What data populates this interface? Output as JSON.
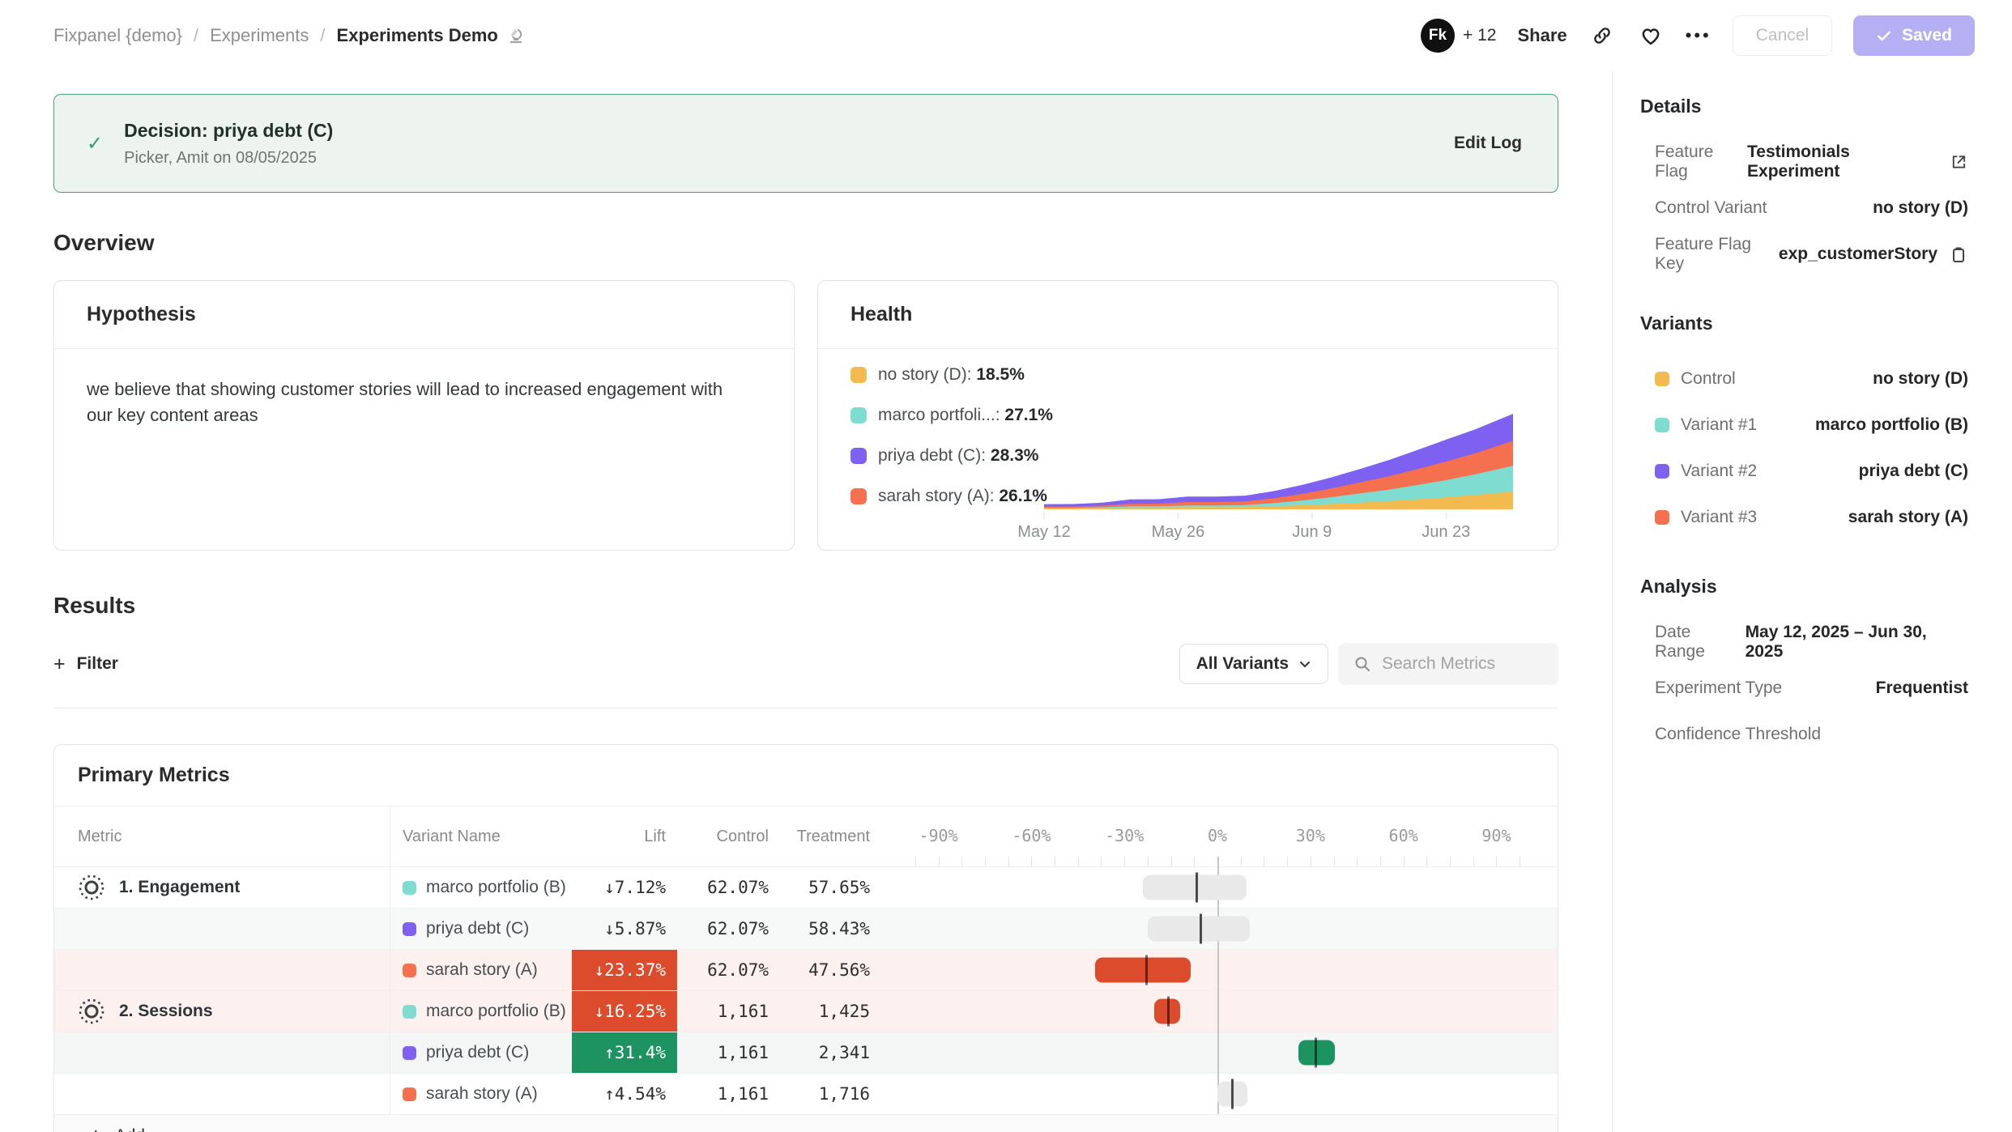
{
  "breadcrumb": {
    "items": [
      "Fixpanel {demo}",
      "Experiments"
    ],
    "current": "Experiments Demo"
  },
  "header": {
    "avatar_label": "Fk",
    "collaborators": "+ 12",
    "share_label": "Share",
    "cancel_label": "Cancel",
    "saved_label": "Saved"
  },
  "decision_banner": {
    "title": "Decision: priya debt (C)",
    "subtitle": "Picker, Amit on 08/05/2025",
    "action": "Edit Log"
  },
  "overview": {
    "title": "Overview",
    "hypothesis": {
      "title": "Hypothesis",
      "body": "we believe that showing customer stories will lead to increased engagement with our key content areas"
    },
    "health": {
      "title": "Health",
      "legend": [
        {
          "name": "no story (D): ",
          "pct": "18.5%",
          "color": "#F3BB4F"
        },
        {
          "name": "marco portfoli...: ",
          "pct": "27.1%",
          "color": "#7FDCD1"
        },
        {
          "name": "priya debt (C): ",
          "pct": "28.3%",
          "color": "#7E61F0"
        },
        {
          "name": "sarah story (A): ",
          "pct": "26.1%",
          "color": "#F4704F"
        }
      ]
    }
  },
  "chart_data": {
    "type": "area",
    "stacked": true,
    "title": "Health",
    "ylim": [
      0,
      100
    ],
    "grid": false,
    "x_days": [
      0,
      3,
      6,
      9,
      12,
      15,
      18,
      21,
      24,
      27,
      30,
      33,
      36,
      39,
      42,
      45,
      49
    ],
    "x_ticks": [
      {
        "label": "May 12",
        "day": 0
      },
      {
        "label": "May 26",
        "day": 14
      },
      {
        "label": "Jun 9",
        "day": 28
      },
      {
        "label": "Jun 23",
        "day": 42
      }
    ],
    "series": [
      {
        "name": "no story (D)",
        "color": "#F3BB4F",
        "values": [
          1.0,
          1.0,
          1.2,
          1.8,
          1.8,
          2.2,
          2.2,
          2.4,
          3.2,
          4.2,
          5.5,
          7.0,
          8.5,
          10.5,
          12.5,
          15.0,
          18.5
        ]
      },
      {
        "name": "marco portfolio (B)",
        "color": "#7FDCD1",
        "values": [
          0.6,
          0.6,
          0.9,
          1.4,
          1.4,
          1.9,
          1.9,
          2.1,
          3.4,
          5.0,
          7.2,
          9.6,
          12.0,
          15.0,
          18.0,
          21.5,
          27.1
        ]
      },
      {
        "name": "sarah story (A)",
        "color": "#F4704F",
        "values": [
          1.2,
          1.3,
          1.7,
          2.6,
          2.7,
          3.6,
          3.6,
          3.8,
          5.0,
          7.0,
          9.2,
          11.5,
          14.0,
          16.5,
          19.5,
          22.0,
          26.1
        ]
      },
      {
        "name": "priya debt (C)",
        "color": "#7E61F0",
        "values": [
          2.6,
          2.6,
          3.1,
          4.6,
          4.7,
          5.7,
          5.7,
          6.0,
          7.5,
          9.5,
          11.5,
          14.0,
          17.0,
          20.0,
          23.0,
          25.0,
          28.3
        ]
      }
    ]
  },
  "results": {
    "title": "Results",
    "filter_label": "Filter",
    "variants_dropdown": "All Variants",
    "search_placeholder": "Search Metrics"
  },
  "primary_metrics": {
    "title": "Primary Metrics",
    "columns": [
      "Metric",
      "Variant Name",
      "Lift",
      "Control",
      "Treatment"
    ],
    "axis_labels": [
      {
        "text": "-90%",
        "pct": -90
      },
      {
        "text": "-60%",
        "pct": -60
      },
      {
        "text": "-30%",
        "pct": -30
      },
      {
        "text": "0%",
        "pct": 0
      },
      {
        "text": "30%",
        "pct": 30
      },
      {
        "text": "60%",
        "pct": 60
      },
      {
        "text": "90%",
        "pct": 90
      }
    ],
    "groups": [
      {
        "name": "1. Engagement",
        "rows": [
          {
            "variant": "marco portfolio (B)",
            "color": "#7FDCD1",
            "lift": "↓7.12%",
            "lift_style": "plain",
            "control": "62.07%",
            "treatment": "57.65%",
            "ci": [
              -24,
              9.5
            ],
            "marker": -7.12,
            "tint": ""
          },
          {
            "variant": "priya debt (C)",
            "color": "#7E61F0",
            "lift": "↓5.87%",
            "lift_style": "plain",
            "control": "62.07%",
            "treatment": "58.43%",
            "ci": [
              -22.5,
              10.5
            ],
            "marker": -5.87,
            "tint": "#F7F8F8"
          },
          {
            "variant": "sarah story (A)",
            "color": "#F4704F",
            "lift": "↓23.37%",
            "lift_style": "red",
            "control": "62.07%",
            "treatment": "47.56%",
            "ci": [
              -39.5,
              -8.5
            ],
            "marker": -23.37,
            "tint": "#FCF1EE"
          }
        ]
      },
      {
        "name": "2. Sessions",
        "rows": [
          {
            "variant": "marco portfolio (B)",
            "color": "#7FDCD1",
            "lift": "↓16.25%",
            "lift_style": "red",
            "control": "1,161",
            "treatment": "1,425",
            "ci": [
              -20.5,
              -12
            ],
            "marker": -16.25,
            "tint": "#FCF1EE"
          },
          {
            "variant": "priya debt (C)",
            "color": "#7E61F0",
            "lift": "↑31.4%",
            "lift_style": "green",
            "control": "1,161",
            "treatment": "2,341",
            "ci": [
              26,
              38
            ],
            "marker": 31.4,
            "tint": "#F3F6F5"
          },
          {
            "variant": "sarah story (A)",
            "color": "#F4704F",
            "lift": "↑4.54%",
            "lift_style": "plain",
            "control": "1,161",
            "treatment": "1,716",
            "ci": [
              0,
              9.6
            ],
            "marker": 4.54,
            "tint": ""
          }
        ]
      }
    ],
    "add_label": "Add",
    "colors": {
      "bar_gray": "#E9E9E9",
      "cell_red": "#DC4B2B",
      "cell_green": "#1E9362"
    }
  },
  "sidebar": {
    "details": {
      "heading": "Details",
      "rows": [
        {
          "label": "Feature Flag",
          "value": "Testimonials Experiment"
        },
        {
          "label": "Control Variant",
          "value": "no story (D)"
        },
        {
          "label": "Feature Flag Key",
          "value": "exp_customerStory"
        }
      ]
    },
    "variants": {
      "heading": "Variants",
      "rows": [
        {
          "label": "Control",
          "value": "no story (D)",
          "color": "#F3BB4F"
        },
        {
          "label": "Variant #1",
          "value": "marco portfolio (B)",
          "color": "#7FDCD1"
        },
        {
          "label": "Variant #2",
          "value": "priya debt (C)",
          "color": "#7E61F0"
        },
        {
          "label": "Variant #3",
          "value": "sarah story (A)",
          "color": "#F4704F"
        }
      ]
    },
    "analysis": {
      "heading": "Analysis",
      "rows": [
        {
          "label": "Date Range",
          "value": "May 12, 2025 – Jun 30, 2025"
        },
        {
          "label": "Experiment Type",
          "value": "Frequentist"
        },
        {
          "label": "Confidence Threshold",
          "value": ""
        }
      ]
    }
  }
}
